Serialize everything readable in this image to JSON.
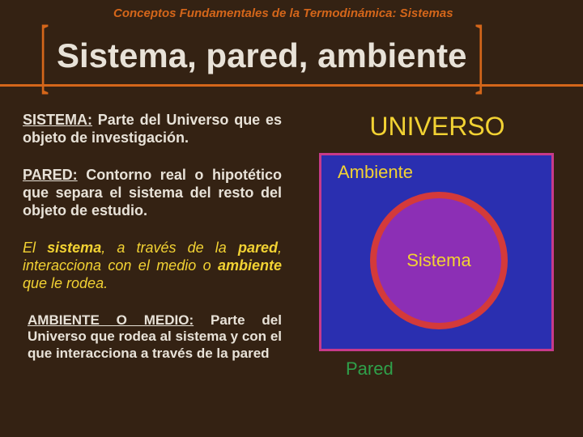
{
  "colors": {
    "slide_bg": "#342213",
    "breadcrumb": "#d4661a",
    "bracket": "#d4661a",
    "title": "#e8e2d8",
    "rule": "#d4661a",
    "text_light": "#e8e2d8",
    "text_yellow": "#f2d233",
    "box_bg": "#2a2fb0",
    "box_border": "#c73a8a",
    "circle_fill": "#8c2fb5",
    "circle_border": "#d43a3a",
    "pared_green": "#2fa04a"
  },
  "breadcrumb": "Conceptos Fundamentales de la Termodinámica: Sistemas",
  "title": "Sistema, pared, ambiente",
  "defs": {
    "sistema_term": "SISTEMA:",
    "sistema_body": " Parte del Universo que es objeto de investigación.",
    "pared_term": "PARED:",
    "pared_body": " Contorno real o hipotético que separa el sistema del resto del  objeto de estudio.",
    "interact_pre": "El ",
    "interact_kw1": "sistema",
    "interact_mid1": ", a través de la ",
    "interact_kw2": "pared",
    "interact_mid2": ", interacciona con el medio o ",
    "interact_kw3": "ambiente",
    "interact_post": " que le rodea.",
    "ambiente_term": "AMBIENTE O MEDIO:",
    "ambiente_body": " Parte del Universo que rodea al sistema y con el que interacciona a través de la pared"
  },
  "diagram": {
    "universo": "UNIVERSO",
    "ambiente": "Ambiente",
    "sistema": "Sistema",
    "pared": "Pared"
  }
}
